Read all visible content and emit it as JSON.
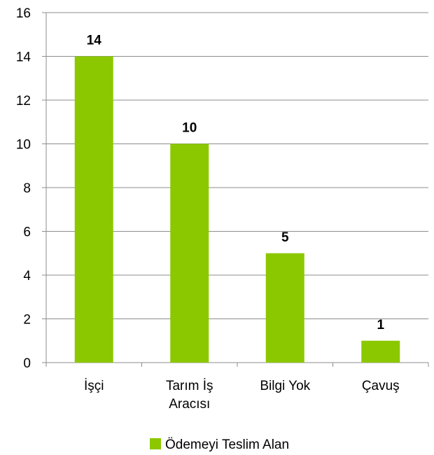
{
  "chart_data": {
    "type": "bar",
    "categories": [
      [
        "İşçi"
      ],
      [
        "Tarım İş",
        "Aracısı"
      ],
      [
        "Bilgi Yok"
      ],
      [
        "Çavuş"
      ]
    ],
    "series": [
      {
        "name": "Ödemeyi Teslim Alan",
        "values": [
          14,
          10,
          5,
          1
        ],
        "color": "#8CC800"
      }
    ],
    "ylim": [
      0,
      16
    ],
    "yticks": [
      0,
      2,
      4,
      6,
      8,
      10,
      12,
      14,
      16
    ],
    "grid": true,
    "legend": "bottom",
    "data_labels": true
  }
}
